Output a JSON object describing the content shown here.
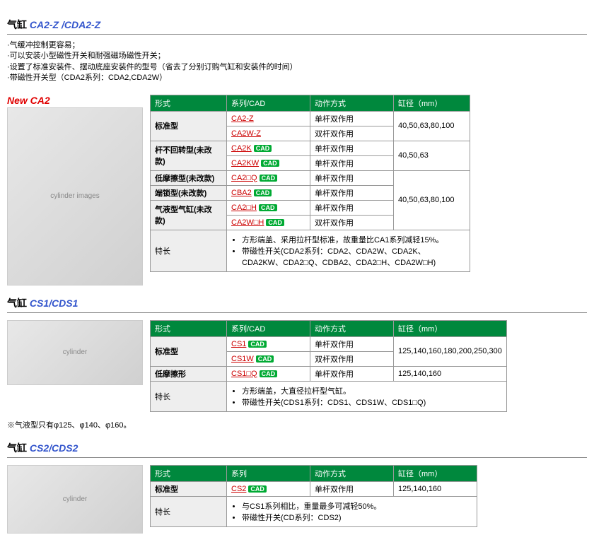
{
  "section1": {
    "title_black": "气缸",
    "title_blue": "CA2-Z /CDA2-Z",
    "bullets": [
      "·气缓冲控制更容易；",
      "·可以安装小型磁性开关和耐强磁场磁性开关；",
      "·设置了标准安装件、摆动底座安装件的型号（省去了分别订购气缸和安装件的时间）",
      "·带磁性开关型（CDA2系列：CDA2,CDA2W）"
    ],
    "new_label": "New CA2",
    "img_alt": "cylinder images",
    "headers": [
      "形式",
      "系列/CAD",
      "动作方式",
      "缸径（mm）"
    ],
    "rows": [
      {
        "type": "标准型",
        "type_rowspan": 2,
        "series": "CA2-Z",
        "cad": false,
        "action": "单杆双作用",
        "dia": "40,50,63,80,100",
        "dia_rowspan": 2
      },
      {
        "series": "CA2W-Z",
        "cad": false,
        "action": "双杆双作用"
      },
      {
        "type": "杆不回转型(未改款)",
        "type_rowspan": 2,
        "series": "CA2K",
        "cad": true,
        "action": "单杆双作用",
        "dia": "40,50,63",
        "dia_rowspan": 2
      },
      {
        "series": "CA2KW",
        "cad": true,
        "action": "单杆双作用"
      },
      {
        "type": "低摩擦型(未改款)",
        "type_rowspan": 1,
        "series": "CA2□Q",
        "cad": true,
        "action": "单杆双作用",
        "dia": "40,50,63,80,100",
        "dia_rowspan": 4
      },
      {
        "type": "端锁型(未改款)",
        "type_rowspan": 1,
        "series": "CBA2",
        "cad": true,
        "action": "单杆双作用"
      },
      {
        "type": "气液型气缸(未改款)",
        "type_rowspan": 2,
        "series": "CA2□H",
        "cad": true,
        "action": "单杆双作用"
      },
      {
        "series": "CA2W□H",
        "cad": true,
        "action": "双杆双作用"
      }
    ],
    "feature_label": "特长",
    "features": [
      "方形端盖、采用拉杆型标准，故重量比CA1系列减轻15%。",
      "带磁性开关(CDA2系列：CDA2、CDA2W、CDA2K、CDA2KW、CDA2□Q、CDBA2、CDA2□H、CDA2W□H)"
    ]
  },
  "section2": {
    "title_black": "气缸",
    "title_blue": "CS1/CDS1",
    "img_alt": "cylinder",
    "headers": [
      "形式",
      "系列/CAD",
      "动作方式",
      "缸径（mm）"
    ],
    "rows": [
      {
        "type": "标准型",
        "type_rowspan": 2,
        "series": "CS1",
        "cad": true,
        "action": "单杆双作用",
        "dia": "125,140,160,180,200,250,300",
        "dia_rowspan": 2
      },
      {
        "series": "CS1W",
        "cad": true,
        "action": "双杆双作用"
      },
      {
        "type": "低摩擦形",
        "type_rowspan": 1,
        "series": "CS1□Q",
        "cad": true,
        "action": "单杆双作用",
        "dia": "125,140,160",
        "dia_rowspan": 1
      }
    ],
    "feature_label": "特长",
    "features": [
      "方形端盖，大直径拉杆型气缸。",
      "带磁性开关(CDS1系列：CDS1、CDS1W、CDS1□Q)"
    ],
    "note": "※气液型只有φ125、φ140、φ160。"
  },
  "section3": {
    "title_black": "气缸",
    "title_blue": "CS2/CDS2",
    "img_alt": "cylinder",
    "headers": [
      "形式",
      "系列",
      "动作方式",
      "缸径（mm）"
    ],
    "rows": [
      {
        "type": "标准型",
        "type_rowspan": 1,
        "series": "CS2",
        "cad": true,
        "action": "单杆双作用",
        "dia": "125,140,160",
        "dia_rowspan": 1
      }
    ],
    "feature_label": "特长",
    "features": [
      "与CS1系列相比，重量最多可减轻50%。",
      "带磁性开关(CD系列：CDS2)"
    ]
  }
}
